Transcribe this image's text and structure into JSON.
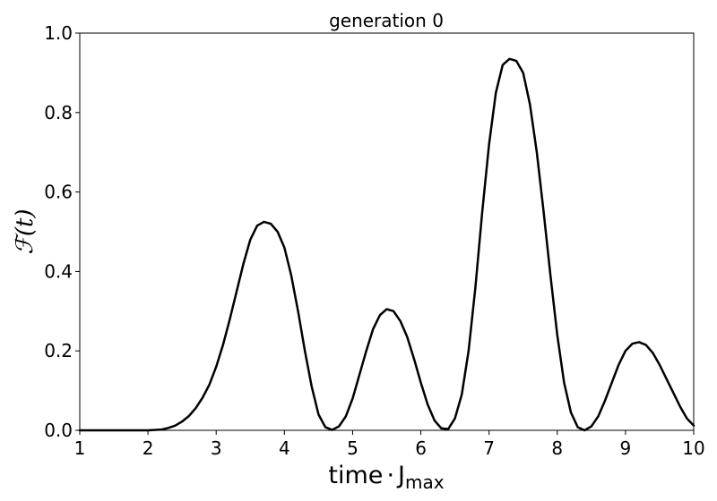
{
  "chart_data": {
    "type": "line",
    "title": "generation 0",
    "xlabel": {
      "base": "time",
      "dot": "·",
      "main": "J",
      "sub": "max"
    },
    "ylabel": {
      "main": "ℱ(t)"
    },
    "xlim": [
      1,
      10
    ],
    "ylim": [
      0,
      1.0
    ],
    "xticks": [
      1,
      2,
      3,
      4,
      5,
      6,
      7,
      8,
      9,
      10
    ],
    "xtick_labels": [
      "1",
      "2",
      "3",
      "4",
      "5",
      "6",
      "7",
      "8",
      "9",
      "10"
    ],
    "yticks": [
      0.0,
      0.2,
      0.4,
      0.6,
      0.8,
      1.0
    ],
    "ytick_labels": [
      "0.0",
      "0.2",
      "0.4",
      "0.6",
      "0.8",
      "1.0"
    ],
    "grid": false,
    "line_color": "#000000",
    "series": [
      {
        "x": [
          1.0,
          1.5,
          2.0,
          2.2,
          2.3,
          2.4,
          2.5,
          2.6,
          2.7,
          2.8,
          2.9,
          3.0,
          3.1,
          3.2,
          3.3,
          3.4,
          3.5,
          3.6,
          3.7,
          3.8,
          3.9,
          4.0,
          4.1,
          4.2,
          4.3,
          4.4,
          4.5,
          4.6,
          4.7,
          4.8,
          4.9,
          5.0,
          5.1,
          5.2,
          5.3,
          5.4,
          5.5,
          5.6,
          5.7,
          5.8,
          5.9,
          6.0,
          6.1,
          6.2,
          6.3,
          6.4,
          6.5,
          6.6,
          6.7,
          6.8,
          6.9,
          7.0,
          7.1,
          7.2,
          7.3,
          7.4,
          7.5,
          7.6,
          7.7,
          7.8,
          7.9,
          8.0,
          8.1,
          8.2,
          8.3,
          8.4,
          8.5,
          8.6,
          8.7,
          8.8,
          8.9,
          9.0,
          9.1,
          9.2,
          9.3,
          9.4,
          9.5,
          9.6,
          9.7,
          9.8,
          9.9,
          10.0
        ],
        "y": [
          0.0,
          0.0,
          0.0,
          0.002,
          0.006,
          0.012,
          0.022,
          0.036,
          0.056,
          0.082,
          0.115,
          0.16,
          0.215,
          0.28,
          0.35,
          0.42,
          0.48,
          0.515,
          0.525,
          0.52,
          0.5,
          0.46,
          0.39,
          0.3,
          0.2,
          0.11,
          0.04,
          0.008,
          0.001,
          0.01,
          0.035,
          0.08,
          0.14,
          0.2,
          0.255,
          0.29,
          0.305,
          0.3,
          0.275,
          0.235,
          0.18,
          0.12,
          0.065,
          0.025,
          0.005,
          0.003,
          0.03,
          0.09,
          0.2,
          0.36,
          0.55,
          0.72,
          0.85,
          0.92,
          0.935,
          0.93,
          0.9,
          0.82,
          0.7,
          0.55,
          0.39,
          0.24,
          0.12,
          0.045,
          0.008,
          0.0,
          0.01,
          0.035,
          0.075,
          0.12,
          0.165,
          0.2,
          0.218,
          0.222,
          0.215,
          0.195,
          0.165,
          0.13,
          0.095,
          0.06,
          0.03,
          0.012
        ]
      }
    ]
  }
}
